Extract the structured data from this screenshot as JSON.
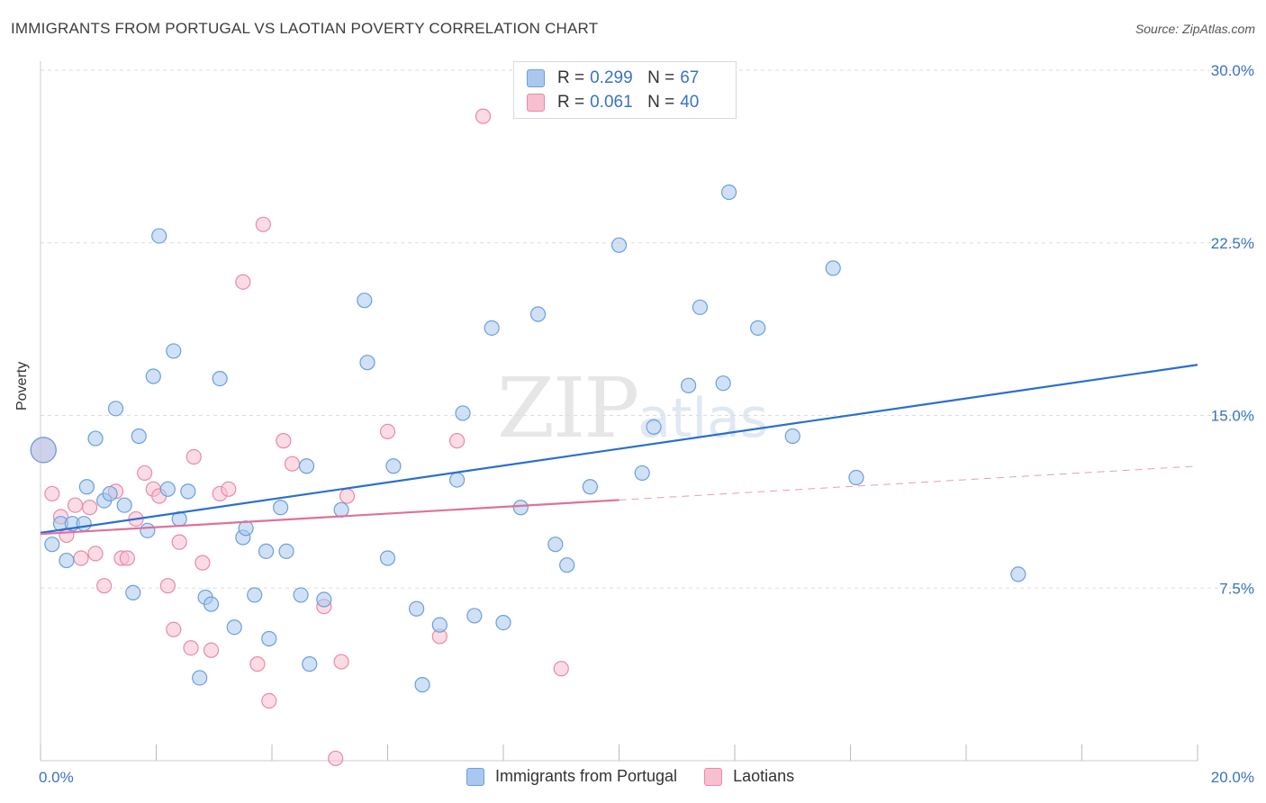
{
  "header": {
    "title": "IMMIGRANTS FROM PORTUGAL VS LAOTIAN POVERTY CORRELATION CHART",
    "source": "Source: ZipAtlas.com"
  },
  "watermark": {
    "zip": "ZIP",
    "atlas": "atlas"
  },
  "legend_top": {
    "rows": [
      {
        "r_key": "R =",
        "r_val": "0.299",
        "n_key": "N =",
        "n_val": "67"
      },
      {
        "r_key": "R =",
        "r_val": "0.061",
        "n_key": "N =",
        "n_val": "40"
      }
    ]
  },
  "legend_bottom": {
    "items": [
      {
        "label": "Immigrants from Portugal"
      },
      {
        "label": "Laotians"
      }
    ]
  },
  "colors": {
    "blue_fill": "#aac8ef",
    "blue_stroke": "#6a9fdc",
    "blue_line": "#2b6fce",
    "pink_fill": "#f7bfd0",
    "pink_stroke": "#e98aa8",
    "pink_line": "#e0709a",
    "tick_text": "#3a72c4",
    "grid": "#dddddd"
  },
  "chart_data": {
    "type": "scatter",
    "title": "IMMIGRANTS FROM PORTUGAL VS LAOTIAN POVERTY CORRELATION CHART",
    "xlabel": "",
    "ylabel": "Poverty",
    "xlim": [
      0,
      20
    ],
    "ylim": [
      0,
      30
    ],
    "x_tick_labels": [
      "0.0%",
      "20.0%"
    ],
    "y_ticks": [
      7.5,
      15.0,
      22.5,
      30.0
    ],
    "y_tick_labels": [
      "7.5%",
      "15.0%",
      "22.5%",
      "30.0%"
    ],
    "grid": true,
    "legend_position": "top-center",
    "series": [
      {
        "name": "Immigrants from Portugal",
        "r": 0.299,
        "n": 67,
        "trend": {
          "x": [
            0,
            20
          ],
          "y": [
            9.9,
            17.2
          ],
          "solid_to": 20
        },
        "points": [
          [
            0.05,
            13.5
          ],
          [
            0.2,
            9.4
          ],
          [
            0.35,
            10.3
          ],
          [
            0.45,
            8.7
          ],
          [
            0.55,
            10.3
          ],
          [
            0.75,
            10.3
          ],
          [
            0.8,
            11.9
          ],
          [
            0.95,
            14.0
          ],
          [
            1.1,
            11.3
          ],
          [
            1.2,
            11.6
          ],
          [
            1.3,
            15.3
          ],
          [
            1.45,
            11.1
          ],
          [
            1.6,
            7.3
          ],
          [
            1.7,
            14.1
          ],
          [
            1.85,
            10.0
          ],
          [
            1.95,
            16.7
          ],
          [
            2.05,
            22.8
          ],
          [
            2.2,
            11.8
          ],
          [
            2.3,
            17.8
          ],
          [
            2.4,
            10.5
          ],
          [
            2.55,
            11.7
          ],
          [
            2.75,
            3.6
          ],
          [
            2.85,
            7.1
          ],
          [
            2.95,
            6.8
          ],
          [
            3.1,
            16.6
          ],
          [
            3.35,
            5.8
          ],
          [
            3.5,
            9.7
          ],
          [
            3.55,
            10.1
          ],
          [
            3.7,
            7.2
          ],
          [
            3.9,
            9.1
          ],
          [
            3.95,
            5.3
          ],
          [
            4.15,
            11.0
          ],
          [
            4.25,
            9.1
          ],
          [
            4.5,
            7.2
          ],
          [
            4.6,
            12.8
          ],
          [
            4.65,
            4.2
          ],
          [
            4.9,
            7.0
          ],
          [
            5.2,
            10.9
          ],
          [
            5.6,
            20.0
          ],
          [
            5.65,
            17.3
          ],
          [
            6.0,
            8.8
          ],
          [
            6.1,
            12.8
          ],
          [
            6.5,
            6.6
          ],
          [
            6.6,
            3.3
          ],
          [
            6.9,
            5.9
          ],
          [
            7.2,
            12.2
          ],
          [
            7.3,
            15.1
          ],
          [
            7.5,
            6.3
          ],
          [
            7.8,
            18.8
          ],
          [
            8.0,
            6.0
          ],
          [
            8.3,
            11.0
          ],
          [
            8.6,
            19.4
          ],
          [
            8.9,
            9.4
          ],
          [
            9.1,
            8.5
          ],
          [
            9.5,
            11.9
          ],
          [
            10.0,
            22.4
          ],
          [
            10.4,
            12.5
          ],
          [
            10.6,
            14.5
          ],
          [
            11.2,
            16.3
          ],
          [
            11.4,
            19.7
          ],
          [
            11.8,
            16.4
          ],
          [
            11.9,
            24.7
          ],
          [
            12.4,
            18.8
          ],
          [
            13.0,
            14.1
          ],
          [
            13.7,
            21.4
          ],
          [
            14.1,
            12.3
          ],
          [
            16.9,
            8.1
          ]
        ]
      },
      {
        "name": "Laotians",
        "r": 0.061,
        "n": 40,
        "trend": {
          "x": [
            0,
            20
          ],
          "y": [
            9.85,
            12.8
          ],
          "solid_to": 10.0
        },
        "points": [
          [
            0.05,
            13.5
          ],
          [
            0.2,
            11.6
          ],
          [
            0.35,
            10.6
          ],
          [
            0.45,
            9.8
          ],
          [
            0.6,
            11.1
          ],
          [
            0.7,
            8.8
          ],
          [
            0.85,
            11.0
          ],
          [
            0.95,
            9.0
          ],
          [
            1.1,
            7.6
          ],
          [
            1.3,
            11.7
          ],
          [
            1.4,
            8.8
          ],
          [
            1.5,
            8.8
          ],
          [
            1.65,
            10.5
          ],
          [
            1.8,
            12.5
          ],
          [
            1.95,
            11.8
          ],
          [
            2.05,
            11.5
          ],
          [
            2.2,
            7.6
          ],
          [
            2.3,
            5.7
          ],
          [
            2.4,
            9.5
          ],
          [
            2.6,
            4.9
          ],
          [
            2.65,
            13.2
          ],
          [
            2.8,
            8.6
          ],
          [
            2.95,
            4.8
          ],
          [
            3.1,
            11.6
          ],
          [
            3.25,
            11.8
          ],
          [
            3.5,
            20.8
          ],
          [
            3.75,
            4.2
          ],
          [
            3.85,
            23.3
          ],
          [
            3.95,
            2.6
          ],
          [
            4.2,
            13.9
          ],
          [
            4.35,
            12.9
          ],
          [
            4.9,
            6.7
          ],
          [
            5.1,
            0.1
          ],
          [
            5.2,
            4.3
          ],
          [
            5.3,
            11.5
          ],
          [
            6.0,
            14.3
          ],
          [
            6.9,
            5.4
          ],
          [
            7.2,
            13.9
          ],
          [
            7.65,
            28.0
          ],
          [
            9.0,
            4.0
          ]
        ]
      }
    ]
  }
}
